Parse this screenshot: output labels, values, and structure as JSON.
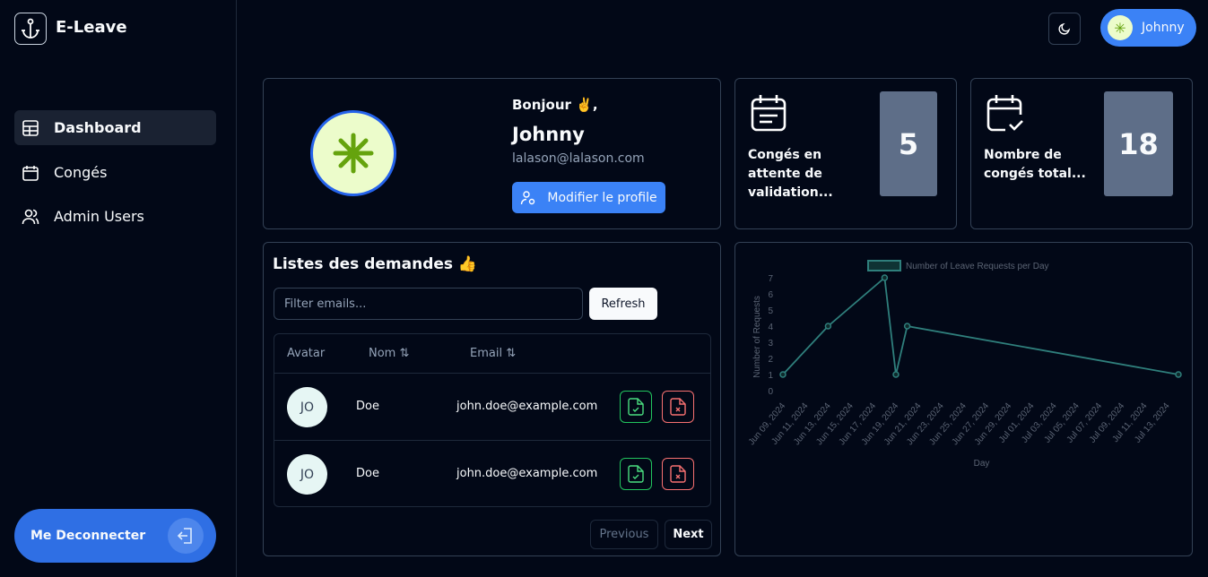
{
  "sidebar": {
    "brand": "E-Leave",
    "nav": [
      "Dashboard",
      "Congés",
      "Admin Users"
    ],
    "logout": "Me Deconnecter"
  },
  "header": {
    "user": "Johnny"
  },
  "profile": {
    "greeting": "Bonjour ✌️,",
    "name": "Johnny",
    "email": "lalason@lalason.com",
    "button": "Modifier le profile"
  },
  "stats": [
    {
      "label": "Congés en attente de validation...",
      "value": 5
    },
    {
      "label": "Nombre de congés total...",
      "value": 18
    }
  ],
  "requests": {
    "title": "Listes des demandes 👍",
    "filter_placeholder": "Filter emails...",
    "refresh": "Refresh",
    "columns": [
      "Avatar",
      "Nom",
      "Email"
    ],
    "rows": [
      [
        "JO",
        "Doe",
        "john.doe@example.com"
      ],
      [
        "JO",
        "Doe",
        "john.doe@example.com"
      ]
    ],
    "previous": "Previous",
    "next": "Next"
  },
  "chart_data": {
    "type": "line",
    "xlabel": "Day",
    "ylabel": "Number of Requests",
    "x": [
      "Jun 09, 2024",
      "Jun 13, 2024",
      "Jun 18, 2024",
      "Jun 19, 2024",
      "Jun 20, 2024",
      "Jul 14, 2024"
    ],
    "series": [
      {
        "name": "Number of Leave Requests per Day",
        "color": "#2f7f7c",
        "values": [
          1,
          4,
          7,
          1,
          4,
          1
        ]
      }
    ],
    "xlim": [
      "Jun 09, 2024",
      "Jul 14, 2024"
    ],
    "xticks": [
      "Jun 09, 2024",
      "Jun 11, 2024",
      "Jun 13, 2024",
      "Jun 15, 2024",
      "Jun 17, 2024",
      "Jun 19, 2024",
      "Jun 21, 2024",
      "Jun 23, 2024",
      "Jun 25, 2024",
      "Jun 27, 2024",
      "Jun 29, 2024",
      "Jul 01, 2024",
      "Jul 03, 2024",
      "Jul 05, 2024",
      "Jul 07, 2024",
      "Jul 09, 2024",
      "Jul 11, 2024",
      "Jul 13, 2024"
    ],
    "ylim": [
      0,
      7
    ],
    "yticks": [
      0,
      1,
      2,
      3,
      4,
      5,
      6,
      7
    ],
    "grid": false,
    "legend": "top"
  }
}
